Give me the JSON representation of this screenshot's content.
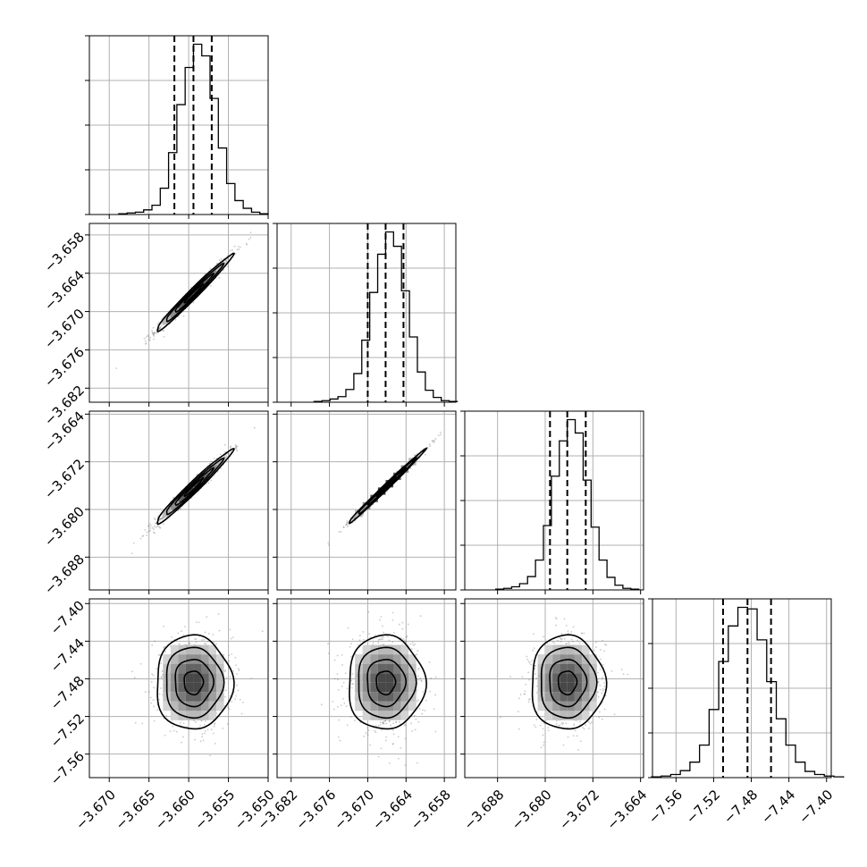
{
  "chart_data": {
    "type": "corner",
    "params": [
      {
        "range": [
          -3.6725,
          -3.65
        ],
        "ticks": [
          -3.67,
          -3.665,
          -3.66,
          -3.655,
          -3.65
        ],
        "tick_labels": [
          "−3.670",
          "−3.665",
          "−3.660",
          "−3.655",
          "−3.650"
        ],
        "quantiles": [
          -3.6618,
          -3.6594,
          -3.6571
        ]
      },
      {
        "range": [
          -3.6842,
          -3.6562
        ],
        "ticks": [
          -3.682,
          -3.676,
          -3.67,
          -3.664,
          -3.658
        ],
        "tick_labels": [
          "−3.682",
          "−3.676",
          "−3.670",
          "−3.664",
          "−3.658"
        ],
        "quantiles": [
          -3.67,
          -3.6672,
          -3.6644
        ]
      },
      {
        "range": [
          -3.6935,
          -3.6635
        ],
        "ticks": [
          -3.688,
          -3.68,
          -3.672,
          -3.664
        ],
        "tick_labels": [
          "−3.688",
          "−3.680",
          "−3.672",
          "−3.664"
        ],
        "quantiles": [
          -3.6792,
          -3.6763,
          -3.6732
        ]
      },
      {
        "range": [
          -7.585,
          -7.395
        ],
        "ticks": [
          -7.56,
          -7.52,
          -7.48,
          -7.44,
          -7.4
        ],
        "tick_labels": [
          "−7.56",
          "−7.52",
          "−7.48",
          "−7.44",
          "−7.40"
        ],
        "quantiles": [
          -7.51,
          -7.484,
          -7.459
        ]
      }
    ],
    "histograms": [
      [
        1,
        2,
        3,
        6,
        12,
        34,
        80,
        142,
        190,
        220,
        205,
        150,
        86,
        40,
        18,
        8,
        3,
        1
      ],
      [
        1,
        2,
        4,
        7,
        16,
        36,
        78,
        138,
        186,
        214,
        196,
        140,
        82,
        38,
        15,
        6,
        2,
        1
      ],
      [
        1,
        2,
        4,
        8,
        17,
        38,
        82,
        145,
        190,
        217,
        200,
        140,
        80,
        38,
        16,
        6,
        2,
        1
      ],
      [
        1,
        2,
        4,
        9,
        20,
        42,
        88,
        150,
        196,
        220,
        218,
        178,
        124,
        76,
        42,
        20,
        8,
        4,
        2,
        1
      ]
    ],
    "pairs": [
      {
        "xi": 0,
        "yi": 1,
        "center": [
          -3.6594,
          -3.6672
        ],
        "sd": [
          0.0024,
          0.003
        ],
        "corr": 0.985
      },
      {
        "xi": 0,
        "yi": 2,
        "center": [
          -3.6594,
          -3.6763
        ],
        "sd": [
          0.0024,
          0.0031
        ],
        "corr": 0.98
      },
      {
        "xi": 1,
        "yi": 2,
        "center": [
          -3.6672,
          -3.6763
        ],
        "sd": [
          0.003,
          0.0031
        ],
        "corr": 0.995
      },
      {
        "xi": 0,
        "yi": 3,
        "center": [
          -3.6594,
          -7.484
        ],
        "sd": [
          0.0024,
          0.025
        ],
        "corr": 0.0
      },
      {
        "xi": 1,
        "yi": 3,
        "center": [
          -3.6672,
          -7.484
        ],
        "sd": [
          0.003,
          0.025
        ],
        "corr": 0.0
      },
      {
        "xi": 2,
        "yi": 3,
        "center": [
          -3.6763,
          -7.484
        ],
        "sd": [
          0.0031,
          0.025
        ],
        "corr": 0.0
      }
    ],
    "contour_levels_sigma": [
      0.5,
      1.0,
      1.5,
      2.0
    ],
    "grid": true,
    "colors": {
      "line": "#000000",
      "grid": "#b0b0b0",
      "points": "#666666",
      "background": "#ffffff"
    }
  }
}
